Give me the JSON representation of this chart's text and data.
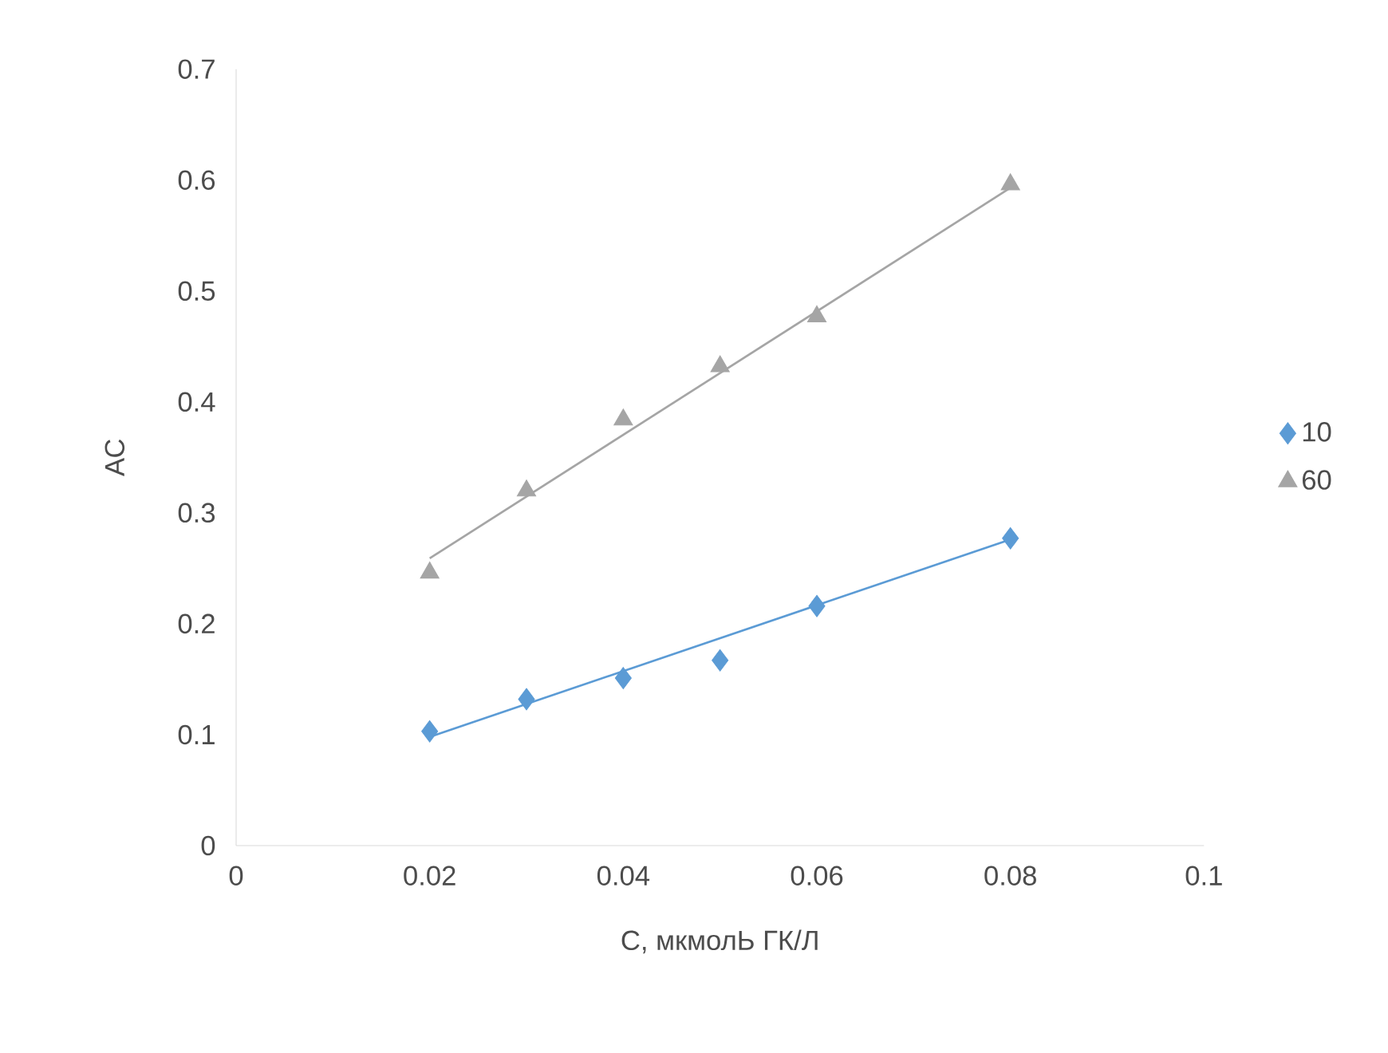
{
  "chart_data": {
    "type": "scatter",
    "xlabel": "С, мкмолЬ ГК/Л",
    "ylabel": "АС",
    "xlim": [
      0,
      0.1
    ],
    "xticks": [
      0,
      0.02,
      0.04,
      0.06,
      0.08,
      0.1
    ],
    "ylim": [
      0,
      0.7
    ],
    "yticks": [
      0,
      0.1,
      0.2,
      0.3,
      0.4,
      0.5,
      0.6,
      0.7
    ],
    "grid": false,
    "legend": "right",
    "series": [
      {
        "name": "10",
        "color": "#5b9bd5",
        "marker": "diamond",
        "x": [
          0.02,
          0.03,
          0.04,
          0.05,
          0.06,
          0.08
        ],
        "values": [
          0.103,
          0.132,
          0.151,
          0.167,
          0.216,
          0.277
        ]
      },
      {
        "name": "60",
        "color": "#a5a5a5",
        "marker": "triangle",
        "x": [
          0.02,
          0.03,
          0.04,
          0.05,
          0.06,
          0.08
        ],
        "values": [
          0.246,
          0.32,
          0.384,
          0.432,
          0.477,
          0.596
        ]
      },
      {
        "type": "line",
        "color": "#5b9bd5",
        "marker": "none",
        "line_style": "solid",
        "x": [
          0.02,
          0.08
        ],
        "values": [
          0.098,
          0.276
        ]
      },
      {
        "type": "line",
        "color": "#a5a5a5",
        "marker": "none",
        "line_style": "solid",
        "x": [
          0.02,
          0.08
        ],
        "values": [
          0.259,
          0.593
        ]
      }
    ]
  }
}
